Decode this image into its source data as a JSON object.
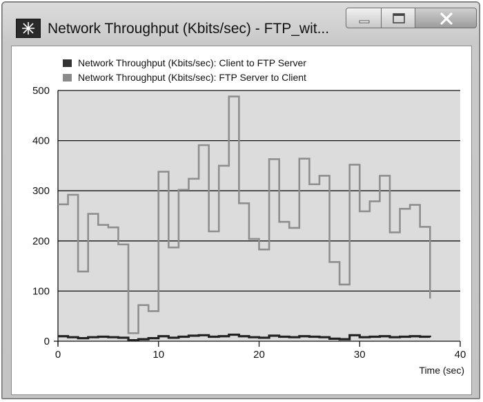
{
  "window": {
    "title": "Network Throughput (Kbits/sec) - FTP_wit...",
    "icons": [
      "app-icon",
      "minimize-icon",
      "maximize-icon",
      "close-icon"
    ]
  },
  "chart_data": {
    "type": "line",
    "title": "",
    "xlabel": "Time (sec)",
    "ylabel": "",
    "xlim": [
      0,
      40
    ],
    "ylim": [
      0,
      500
    ],
    "xticks": [
      0,
      10,
      20,
      30,
      40
    ],
    "yticks": [
      0,
      100,
      200,
      300,
      400,
      500
    ],
    "grid": "horizontal",
    "legend_position": "top-left",
    "plot_background": "#dcdcdc",
    "step": true,
    "series": [
      {
        "name": "Network Throughput (Kbits/sec): Client to FTP Server",
        "color": "#222222",
        "x": [
          0,
          1,
          2,
          3,
          4,
          5,
          6,
          7,
          8,
          9,
          10,
          11,
          12,
          13,
          14,
          15,
          16,
          17,
          18,
          19,
          20,
          21,
          22,
          23,
          24,
          25,
          26,
          27,
          28,
          29,
          30,
          31,
          32,
          33,
          34,
          35,
          36,
          37
        ],
        "values": [
          10,
          8,
          6,
          8,
          9,
          8,
          7,
          2,
          4,
          6,
          10,
          7,
          9,
          11,
          12,
          9,
          10,
          13,
          10,
          8,
          7,
          11,
          9,
          8,
          10,
          9,
          8,
          5,
          4,
          12,
          8,
          9,
          10,
          8,
          9,
          10,
          9,
          8
        ]
      },
      {
        "name": "Network Throughput (Kbits/sec): FTP Server to Client",
        "color": "#8e8e8e",
        "x": [
          0,
          1,
          2,
          3,
          4,
          5,
          6,
          7,
          8,
          9,
          10,
          11,
          12,
          13,
          14,
          15,
          16,
          17,
          18,
          19,
          20,
          21,
          22,
          23,
          24,
          25,
          26,
          27,
          28,
          29,
          30,
          31,
          32,
          33,
          34,
          35,
          36,
          37
        ],
        "values": [
          273,
          292,
          139,
          254,
          232,
          227,
          193,
          16,
          72,
          60,
          338,
          187,
          302,
          324,
          391,
          219,
          350,
          488,
          275,
          204,
          183,
          363,
          238,
          226,
          364,
          313,
          330,
          158,
          113,
          352,
          259,
          279,
          330,
          217,
          264,
          272,
          228,
          85
        ]
      }
    ]
  }
}
